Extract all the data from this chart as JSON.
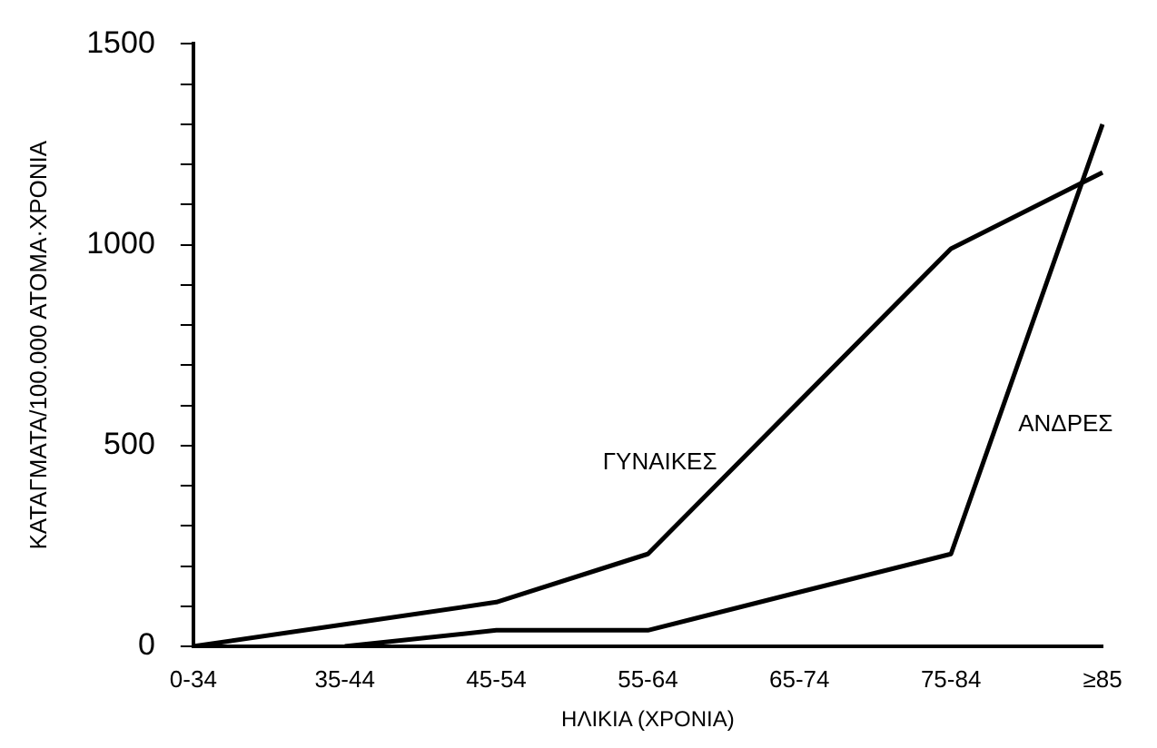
{
  "chart_data": {
    "type": "line",
    "xlabel": "ΗΛΙΚΙΑ (ΧΡΟΝΙΑ)",
    "ylabel": "ΚΑΤΑΓΜΑΤΑ/100.000 ΑΤΟΜΑ·ΧΡΟΝΙΑ",
    "categories": [
      "0-34",
      "35-44",
      "45-54",
      "55-64",
      "65-74",
      "75-84",
      "≥85"
    ],
    "series": [
      {
        "name": "ΓΥΝΑΙΚΕΣ",
        "color": "#000000",
        "values": [
          0,
          55,
          110,
          230,
          610,
          990,
          1180
        ]
      },
      {
        "name": "ΑΝΔΡΕΣ",
        "color": "#000000",
        "values": [
          null,
          0,
          40,
          40,
          135,
          230,
          1300
        ]
      }
    ],
    "ylim": [
      0,
      1500
    ],
    "yticks": [
      0,
      {
        "value": 100,
        "label": null
      },
      {
        "value": 200,
        "label": null
      },
      {
        "value": 300,
        "label": null
      },
      {
        "value": 400,
        "label": null
      },
      500,
      {
        "value": 600,
        "label": null
      },
      {
        "value": 700,
        "label": null
      },
      {
        "value": 800,
        "label": null
      },
      {
        "value": 900,
        "label": null
      },
      1000,
      {
        "value": 1100,
        "label": null
      },
      {
        "value": 1200,
        "label": null
      },
      {
        "value": 1300,
        "label": null
      },
      {
        "value": 1400,
        "label": null
      },
      1500
    ],
    "grid": false,
    "legend": false,
    "marker": "none",
    "line_style": "solid"
  }
}
